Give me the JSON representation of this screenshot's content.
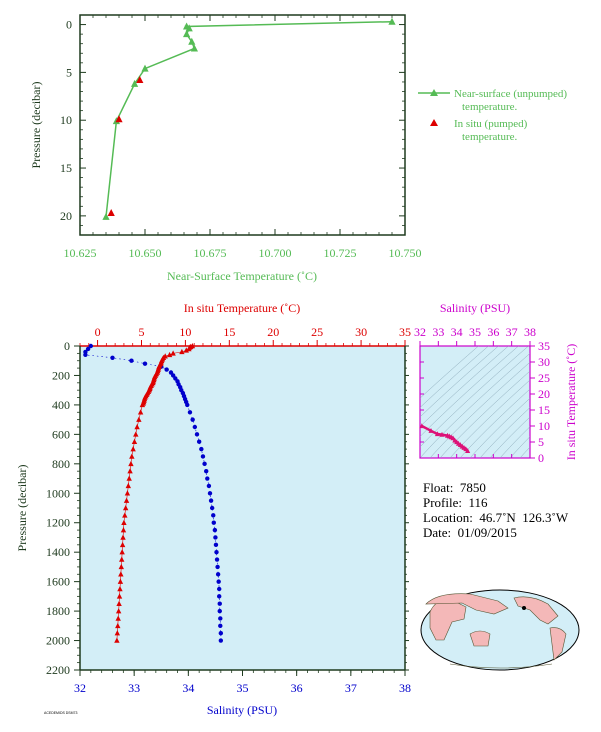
{
  "top_chart": {
    "xlabel": "Near-Surface Temperature (˚C)",
    "ylabel": "Pressure (decibar)",
    "xticks": [
      "10.625",
      "10.650",
      "10.675",
      "10.700",
      "10.725",
      "10.750"
    ],
    "yticks": [
      "0",
      "5",
      "10",
      "15",
      "20"
    ],
    "legend": {
      "unpumped_line1": "Near-surface (unpumped)",
      "unpumped_line2": "temperature.",
      "pumped_line1": "In situ (pumped)",
      "pumped_line2": "temperature."
    }
  },
  "profile_chart": {
    "top_axis_label": "In situ Temperature (˚C)",
    "bottom_axis_label": "Salinity (PSU)",
    "ylabel": "Pressure (decibar)",
    "temp_ticks": [
      "0",
      "5",
      "10",
      "15",
      "20",
      "25",
      "30",
      "35"
    ],
    "sal_ticks": [
      "32",
      "33",
      "34",
      "35",
      "36",
      "37",
      "38"
    ],
    "pres_ticks": [
      "0",
      "200",
      "400",
      "600",
      "800",
      "1000",
      "1200",
      "1400",
      "1600",
      "1800",
      "2000",
      "2200"
    ],
    "footnote": "ACEDEMIDS DSM73"
  },
  "ts_chart": {
    "top_label": "Salinity (PSU)",
    "right_label": "In situ Temperature (˚C)",
    "sal_ticks": [
      "32",
      "33",
      "34",
      "35",
      "36",
      "37",
      "38"
    ],
    "temp_ticks": [
      "0",
      "5",
      "10",
      "15",
      "20",
      "25",
      "30",
      "35"
    ]
  },
  "float_info": {
    "float_label": "Float:",
    "float_value": "7850",
    "profile_label": "Profile:",
    "profile_value": "116",
    "location_label": "Location:",
    "location_value": "46.7˚N  126.3˚W",
    "date_label": "Date:",
    "date_value": "01/09/2015"
  },
  "colors": {
    "near_surface": "#55bb55",
    "temperature": "#dd0000",
    "salinity": "#0000cc",
    "ts": "#dd1177",
    "plot_bg": "#d3eef7",
    "axis_green": "#1e3a1e",
    "magenta_axis": "#cc00cc"
  },
  "chart_data": [
    {
      "type": "line",
      "xlim": [
        10.625,
        10.75
      ],
      "ylim": [
        22,
        -1
      ],
      "series": [
        {
          "name": "Near-surface (unpumped) temperature.",
          "x": [
            10.745,
            10.666,
            10.667,
            10.666,
            10.668,
            10.669,
            10.65,
            10.646,
            10.639,
            10.635
          ],
          "y": [
            -0.3,
            0.2,
            0.4,
            1.0,
            1.8,
            2.5,
            4.6,
            6.2,
            10.1,
            20.1
          ]
        },
        {
          "name": "In situ (pumped) temperature.",
          "x": [
            10.648,
            10.64,
            10.637
          ],
          "y": [
            5.8,
            9.9,
            19.7
          ]
        }
      ]
    },
    {
      "type": "scatter",
      "ylim": [
        2200,
        0
      ],
      "temperature_xlim": [
        -2,
        35
      ],
      "salinity_xlim": [
        32,
        38
      ],
      "temperature_profile": {
        "p": [
          0,
          5,
          10,
          20,
          30,
          40,
          50,
          60,
          70,
          80,
          90,
          100,
          110,
          120,
          130,
          140,
          150,
          160,
          170,
          180,
          190,
          200,
          210,
          220,
          230,
          240,
          250,
          260,
          270,
          280,
          290,
          300,
          310,
          320,
          330,
          340,
          350,
          360,
          370,
          380,
          390,
          400,
          450,
          500,
          550,
          600,
          650,
          700,
          750,
          800,
          850,
          900,
          950,
          1000,
          1050,
          1100,
          1150,
          1200,
          1250,
          1300,
          1350,
          1400,
          1450,
          1500,
          1550,
          1600,
          1650,
          1700,
          1750,
          1800,
          1850,
          1900,
          1950,
          2000
        ],
        "t": [
          10.8,
          10.6,
          10.5,
          10.4,
          10.1,
          9.6,
          8.6,
          8.2,
          7.7,
          7.5,
          7.4,
          7.3,
          7.25,
          7.2,
          7.1,
          7.0,
          6.95,
          6.9,
          6.85,
          6.8,
          6.7,
          6.6,
          6.5,
          6.45,
          6.4,
          6.35,
          6.3,
          6.2,
          6.1,
          6.0,
          5.95,
          5.9,
          5.8,
          5.7,
          5.6,
          5.5,
          5.4,
          5.35,
          5.3,
          5.25,
          5.2,
          5.1,
          4.9,
          4.7,
          4.5,
          4.35,
          4.2,
          4.05,
          3.9,
          3.8,
          3.7,
          3.6,
          3.5,
          3.4,
          3.3,
          3.2,
          3.1,
          3.0,
          2.95,
          2.9,
          2.85,
          2.8,
          2.75,
          2.7,
          2.65,
          2.6,
          2.55,
          2.5,
          2.45,
          2.4,
          2.35,
          2.3,
          2.25,
          2.2
        ]
      },
      "salinity_profile": {
        "p": [
          0,
          20,
          40,
          60,
          80,
          100,
          120,
          140,
          160,
          180,
          200,
          220,
          240,
          260,
          280,
          300,
          320,
          340,
          360,
          380,
          400,
          450,
          500,
          550,
          600,
          650,
          700,
          750,
          800,
          850,
          900,
          950,
          1000,
          1050,
          1100,
          1150,
          1200,
          1250,
          1300,
          1350,
          1400,
          1450,
          1500,
          1550,
          1600,
          1650,
          1700,
          1750,
          1800,
          1850,
          1900,
          1950,
          2000
        ],
        "s": [
          32.2,
          32.15,
          32.1,
          32.1,
          32.6,
          32.95,
          33.2,
          33.5,
          33.6,
          33.68,
          33.72,
          33.76,
          33.8,
          33.82,
          33.85,
          33.87,
          33.9,
          33.92,
          33.94,
          33.96,
          33.98,
          34.03,
          34.08,
          34.12,
          34.16,
          34.2,
          34.24,
          34.27,
          34.3,
          34.33,
          34.35,
          34.38,
          34.4,
          34.42,
          34.44,
          34.46,
          34.47,
          34.49,
          34.5,
          34.51,
          34.52,
          34.53,
          34.54,
          34.55,
          34.56,
          34.57,
          34.57,
          34.58,
          34.58,
          34.59,
          34.59,
          34.6,
          34.6
        ]
      }
    },
    {
      "type": "scatter",
      "xlim": [
        32,
        38
      ],
      "ylim": [
        0,
        35
      ],
      "series": [
        {
          "name": "T-S",
          "s": [
            32.1,
            32.6,
            32.95,
            33.2,
            33.5,
            33.6,
            33.7,
            33.8,
            33.9,
            34.0,
            34.1,
            34.2,
            34.3,
            34.4,
            34.5,
            34.6
          ],
          "t": [
            10.0,
            8.5,
            7.5,
            7.3,
            7.0,
            6.8,
            6.5,
            6.2,
            5.5,
            5.0,
            4.5,
            4.1,
            3.6,
            3.2,
            2.8,
            2.2
          ]
        }
      ]
    }
  ]
}
